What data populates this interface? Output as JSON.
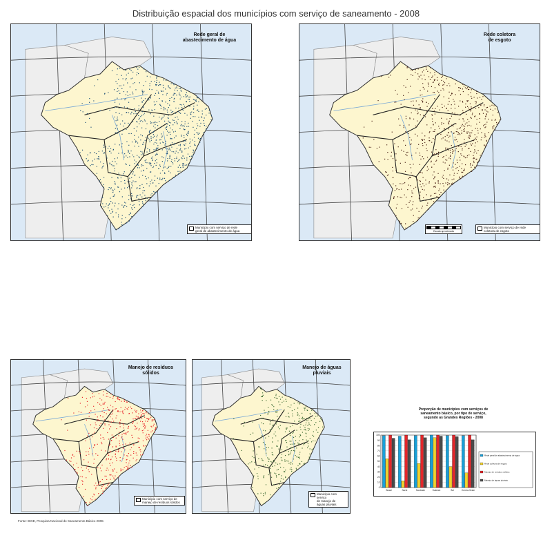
{
  "page": {
    "title": "Distribuição espacial dos municípios com serviço de saneamento - 2008",
    "source": "Fonte: IBGE, Pesquisa Nacional de Saneamento Básico 2008."
  },
  "maps": [
    {
      "id": "water",
      "label": "Rede geral de\nabastecimento de água",
      "legend": "Município com serviço de rede\ngeral de abastecimento de água",
      "dot_color": "#1e4f78",
      "ocean_color": "#dbe9f6",
      "land_color": "#fdf6cf",
      "density": 0.85
    },
    {
      "id": "sewage",
      "label": "Rede coletora\nde esgoto",
      "legend": "Município com serviço de rede\ncoletora de esgoto",
      "scale_label": "Escala aproximada",
      "dot_color": "#4a1f14",
      "ocean_color": "#dbe9f6",
      "land_color": "#fdf6cf",
      "density": 0.7
    },
    {
      "id": "solid",
      "label": "Manejo de resíduos\nsólidos",
      "legend": "Município com serviço de\nmanejo de resíduos sólidos",
      "dot_color": "#e8262b",
      "ocean_color": "#dbe9f6",
      "land_color": "#fdf6cf",
      "density": 0.8
    },
    {
      "id": "rain",
      "label": "Manejo de águas\npluviais",
      "legend": "Município com serviço\nde manejo de\náguas pluviais",
      "dot_color": "#3f6b34",
      "ocean_color": "#dbe9f6",
      "land_color": "#fdf6cf",
      "density": 0.75
    }
  ],
  "chart_data": {
    "type": "bar",
    "title": "Proporção de municípios com serviços de\nsaneamento básico, por tipo de serviço,\nsegundo as Grandes Regiões - 2008",
    "categories": [
      "Brasil",
      "Norte",
      "Nordeste",
      "Sudeste",
      "Sul",
      "Centro-Oeste"
    ],
    "ylim": [
      0,
      100
    ],
    "yticks": [
      0,
      10,
      20,
      30,
      40,
      50,
      60,
      70,
      80,
      90,
      100
    ],
    "series": [
      {
        "name": "Rede geral de abastecimento de água",
        "color": "#19a0d8",
        "values": [
          99,
          98,
          99,
          100,
          99,
          99
        ]
      },
      {
        "name": "Rede coletora de esgoto",
        "color": "#f2d22e",
        "values": [
          55,
          13,
          46,
          95,
          40,
          28
        ]
      },
      {
        "name": "Manejo de resíduos sólidos",
        "color": "#e3262a",
        "values": [
          100,
          100,
          100,
          100,
          100,
          100
        ]
      },
      {
        "name": "Manejo de águas pluviais",
        "color": "#4a4a4a",
        "values": [
          94,
          91,
          95,
          98,
          97,
          91
        ]
      }
    ],
    "legend_position": "right"
  }
}
